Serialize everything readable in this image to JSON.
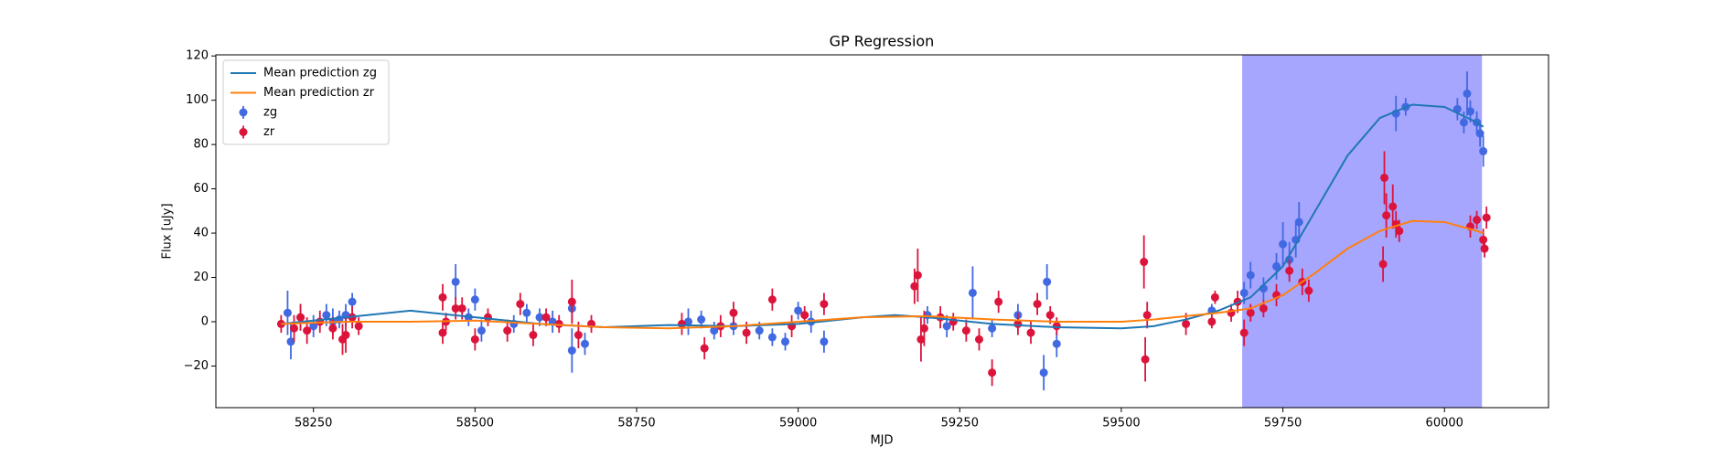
{
  "chart_data": {
    "type": "scatter",
    "title": "GP Regression",
    "x_label": "MJD",
    "y_label": "Flux [uJy]",
    "xlim": [
      58099,
      60161
    ],
    "ylim": [
      -38.8,
      120.5
    ],
    "xticks": [
      58250,
      58500,
      58750,
      59000,
      59250,
      59500,
      59750,
      60000
    ],
    "yticks": [
      {
        "value": -20,
        "label": "−20"
      },
      0,
      20,
      40,
      60,
      80,
      100,
      120
    ],
    "span": [
      59687,
      60058
    ],
    "span_color": "#a6a6ff",
    "legend": "upper left",
    "series": [
      {
        "name": "Mean prediction zg",
        "color": "#1f77b4",
        "kind": "line",
        "x": [
          58200,
          58300,
          58400,
          58500,
          58600,
          58700,
          58800,
          58900,
          59000,
          59100,
          59150,
          59200,
          59300,
          59400,
          59500,
          59550,
          59600,
          59650,
          59700,
          59750,
          59800,
          59850,
          59900,
          59950,
          60000,
          60050,
          60060
        ],
        "values": [
          -1,
          2,
          5,
          2,
          -1,
          -2.5,
          -1.5,
          -2,
          -1,
          2,
          3,
          2,
          -1,
          -2.5,
          -3,
          -2,
          1,
          5,
          11,
          25,
          50,
          75,
          92,
          98,
          97,
          90,
          88
        ]
      },
      {
        "name": "Mean prediction zr",
        "color": "#ff7f0e",
        "kind": "line",
        "x": [
          58200,
          58300,
          58400,
          58500,
          58600,
          58700,
          58800,
          58900,
          59000,
          59100,
          59200,
          59300,
          59400,
          59500,
          59550,
          59600,
          59650,
          59700,
          59750,
          59800,
          59850,
          59900,
          59950,
          60000,
          60050,
          60060
        ],
        "values": [
          -1,
          0,
          0,
          0.5,
          -1,
          -2.5,
          -3,
          -2,
          0,
          2,
          2.5,
          1,
          0,
          0,
          1,
          2.5,
          4,
          6,
          12,
          22,
          33,
          41,
          45.5,
          45,
          41,
          40
        ]
      },
      {
        "name": "zg",
        "color": "#4169e1",
        "kind": "errorbar",
        "x": [
          58210,
          58215,
          58230,
          58250,
          58270,
          58280,
          58290,
          58300,
          58310,
          58470,
          58490,
          58500,
          58510,
          58560,
          58580,
          58600,
          58620,
          58650,
          58650,
          58670,
          58830,
          58850,
          58870,
          58900,
          58940,
          58960,
          58980,
          59000,
          59020,
          59040,
          59200,
          59230,
          59270,
          59300,
          59340,
          59380,
          59385,
          59400,
          59640,
          59690,
          59700,
          59720,
          59740,
          59750,
          59760,
          59770,
          59775,
          59925,
          59940,
          60020,
          60030,
          60035,
          60040,
          60050,
          60055,
          60060
        ],
        "values": [
          4,
          -9,
          2,
          -2,
          3,
          0,
          1,
          3,
          9,
          18,
          2,
          10,
          -4,
          -1,
          4,
          2,
          0,
          6,
          -13,
          -10,
          0,
          1,
          -4,
          -2,
          -4,
          -7,
          -9,
          5,
          0,
          -9,
          3,
          -2,
          13,
          -3,
          3,
          -23,
          18,
          -10,
          5,
          13,
          21,
          15,
          25,
          35,
          28,
          37,
          45,
          94,
          97,
          96,
          90,
          103,
          95,
          90,
          85,
          77
        ],
        "errors": [
          10,
          8,
          6,
          5,
          5,
          6,
          4,
          5,
          4,
          8,
          4,
          5,
          5,
          4,
          4,
          4,
          5,
          6,
          10,
          5,
          6,
          4,
          4,
          4,
          4,
          4,
          4,
          4,
          5,
          5,
          4,
          5,
          12,
          4,
          5,
          8,
          8,
          6,
          3,
          5,
          6,
          5,
          6,
          10,
          8,
          8,
          9,
          8,
          4,
          5,
          5,
          10,
          5,
          5,
          6,
          7
        ]
      },
      {
        "name": "zr",
        "color": "#dc143c",
        "kind": "errorbar",
        "x": [
          58200,
          58220,
          58230,
          58240,
          58260,
          58280,
          58295,
          58300,
          58310,
          58320,
          58450,
          58450,
          58455,
          58470,
          58480,
          58500,
          58520,
          58550,
          58570,
          58590,
          58610,
          58630,
          58650,
          58660,
          58680,
          58820,
          58855,
          58880,
          58900,
          58920,
          58960,
          58990,
          59010,
          59040,
          59180,
          59185,
          59190,
          59195,
          59220,
          59240,
          59260,
          59280,
          59300,
          59310,
          59340,
          59360,
          59370,
          59390,
          59400,
          59535,
          59537,
          59540,
          59600,
          59640,
          59645,
          59670,
          59680,
          59690,
          59700,
          59720,
          59740,
          59760,
          59780,
          59790,
          59905,
          59907,
          59910,
          59920,
          59925,
          59930,
          60040,
          60050,
          60060,
          60062,
          60065
        ],
        "values": [
          -1,
          -3,
          2,
          -4,
          0,
          -3,
          -8,
          -6,
          2,
          -2,
          11,
          -5,
          0,
          6,
          6,
          -8,
          2,
          -4,
          8,
          -6,
          2,
          -1,
          9,
          -6,
          -1,
          -1,
          -12,
          -2,
          4,
          -5,
          10,
          -2,
          3,
          8,
          16,
          21,
          -8,
          -3,
          2,
          0,
          -4,
          -8,
          -23,
          9,
          -1,
          -5,
          8,
          3,
          -2,
          27,
          -17,
          3,
          -1,
          0,
          11,
          4,
          9,
          -5,
          4,
          6,
          12,
          23,
          18,
          14,
          26,
          65,
          48,
          52,
          44,
          41,
          43,
          46,
          37,
          33,
          47
        ],
        "errors": [
          4,
          6,
          6,
          6,
          5,
          5,
          7,
          8,
          5,
          4,
          6,
          5,
          4,
          5,
          5,
          5,
          4,
          5,
          5,
          5,
          4,
          4,
          10,
          6,
          4,
          5,
          5,
          5,
          5,
          5,
          5,
          5,
          4,
          5,
          8,
          12,
          10,
          8,
          5,
          4,
          5,
          5,
          6,
          5,
          5,
          5,
          5,
          4,
          4,
          12,
          10,
          6,
          5,
          3,
          3,
          4,
          5,
          6,
          4,
          4,
          5,
          5,
          6,
          5,
          8,
          12,
          10,
          10,
          6,
          5,
          5,
          4,
          5,
          4,
          5
        ]
      }
    ]
  }
}
